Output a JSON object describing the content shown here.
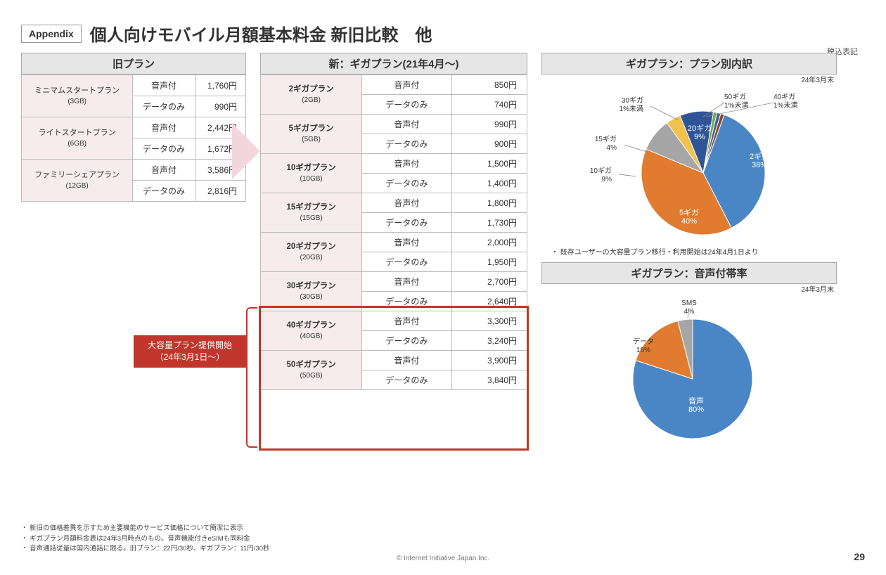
{
  "appendix_badge": "Appendix",
  "title": "個人向けモバイル月額基本料金 新旧比較　他",
  "tax_note": "税込表記",
  "old_plans": {
    "header": "旧プラン",
    "rows": [
      {
        "name": "ミニマムスタートプラン",
        "gb": "(3GB)",
        "voice_label": "音声付",
        "voice_price": "1,760円",
        "data_label": "データのみ",
        "data_price": "990円"
      },
      {
        "name": "ライトスタートプラン",
        "gb": "(6GB)",
        "voice_label": "音声付",
        "voice_price": "2,442円",
        "data_label": "データのみ",
        "data_price": "1,672円"
      },
      {
        "name": "ファミリーシェアプラン",
        "gb": "(12GB)",
        "voice_label": "音声付",
        "voice_price": "3,586円",
        "data_label": "データのみ",
        "data_price": "2,816円"
      }
    ]
  },
  "new_plans": {
    "header": "新：ギガプラン(21年4月～)",
    "rows": [
      {
        "name": "2ギガプラン",
        "gb": "(2GB)",
        "voice_label": "音声付",
        "voice_price": "850円",
        "data_label": "データのみ",
        "data_price": "740円"
      },
      {
        "name": "5ギガプラン",
        "gb": "(5GB)",
        "voice_label": "音声付",
        "voice_price": "990円",
        "data_label": "データのみ",
        "data_price": "900円"
      },
      {
        "name": "10ギガプラン",
        "gb": "(10GB)",
        "voice_label": "音声付",
        "voice_price": "1,500円",
        "data_label": "データのみ",
        "data_price": "1,400円"
      },
      {
        "name": "15ギガプラン",
        "gb": "(15GB)",
        "voice_label": "音声付",
        "voice_price": "1,800円",
        "data_label": "データのみ",
        "data_price": "1,730円"
      },
      {
        "name": "20ギガプラン",
        "gb": "(20GB)",
        "voice_label": "音声付",
        "voice_price": "2,000円",
        "data_label": "データのみ",
        "data_price": "1,950円"
      },
      {
        "name": "30ギガプラン",
        "gb": "(30GB)",
        "voice_label": "音声付",
        "voice_price": "2,700円",
        "data_label": "データのみ",
        "data_price": "2,640円"
      },
      {
        "name": "40ギガプラン",
        "gb": "(40GB)",
        "voice_label": "音声付",
        "voice_price": "3,300円",
        "data_label": "データのみ",
        "data_price": "3,240円"
      },
      {
        "name": "50ギガプラン",
        "gb": "(50GB)",
        "voice_label": "音声付",
        "voice_price": "3,900円",
        "data_label": "データのみ",
        "data_price": "3,840円"
      }
    ]
  },
  "callout": {
    "line1": "大容量プラン提供開始",
    "line2": "（24年3月1日～）"
  },
  "pie1": {
    "header": "ギガプラン：プラン別内訳",
    "date": "24年3月末",
    "note": "既存ユーザーの大容量プラン移行・利用開始は24年4月1日より",
    "slices": [
      {
        "label": "2ギガ",
        "pct": "38%",
        "color": "#4a86c5"
      },
      {
        "label": "5ギガ",
        "pct": "40%",
        "color": "#e07b2f"
      },
      {
        "label": "10ギガ",
        "pct": "9%",
        "color": "#a6a6a6"
      },
      {
        "label": "15ギガ",
        "pct": "4%",
        "color": "#f2c14e"
      },
      {
        "label": "20ギガ",
        "pct": "9%",
        "color": "#2f5597"
      },
      {
        "label": "30ギガ",
        "pct": "1%未満",
        "color": "#7aa85a"
      },
      {
        "label": "50ギガ",
        "pct": "1%未満",
        "color": "#3d6291"
      },
      {
        "label": "40ギガ",
        "pct": "1%未満",
        "color": "#8b4a2a"
      }
    ]
  },
  "pie2": {
    "header": "ギガプラン：音声付帯率",
    "date": "24年3月末",
    "slices": [
      {
        "label": "音声",
        "pct": "80%",
        "color": "#4a86c5"
      },
      {
        "label": "データ",
        "pct": "16%",
        "color": "#e07b2f"
      },
      {
        "label": "SMS",
        "pct": "4%",
        "color": "#a6a6a6"
      }
    ]
  },
  "footnotes": [
    "新旧の価格差異を示すため主要機能のサービス価格について簡潔に表示",
    "ギガプラン月額料金表は24年3月時点のもの。音声機能付きeSIMも同料金",
    "音声通話従量は国内通話に限る。旧プラン：22円/30秒、ギガプラン：11円/30秒"
  ],
  "copyright": "© Internet Initiative Japan Inc.",
  "page_number": "29",
  "colors": {
    "pink_bg": "#f6ecee",
    "red": "#c0362c",
    "header_bg": "#e6e6e6",
    "border": "#bbbbbb"
  }
}
